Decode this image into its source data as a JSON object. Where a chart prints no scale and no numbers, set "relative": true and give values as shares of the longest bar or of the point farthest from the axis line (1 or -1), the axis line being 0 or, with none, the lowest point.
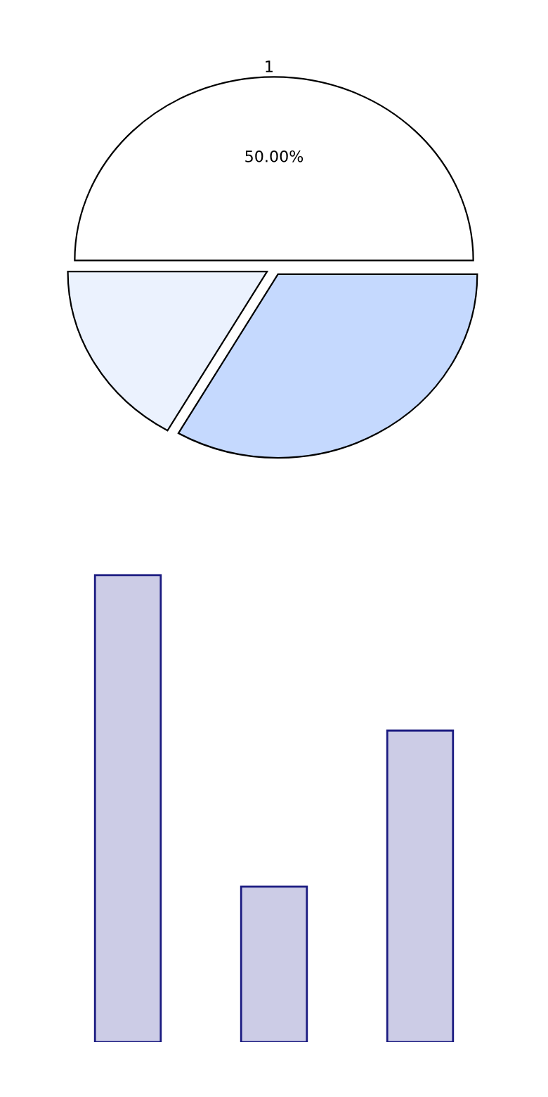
{
  "chart_data": [
    {
      "type": "pie",
      "categories": [
        "1",
        null,
        null
      ],
      "values": [
        50,
        16.67,
        33.33
      ],
      "colors": [
        "#ffffff",
        "#ebf2fe",
        "#c5d9fe"
      ],
      "value_labels": [
        "50.00%",
        null,
        null
      ]
    },
    {
      "type": "bar",
      "categories": [
        null,
        null,
        null
      ],
      "values": [
        1,
        0.333,
        0.667
      ],
      "relative": true,
      "color": "#cccce6"
    }
  ]
}
